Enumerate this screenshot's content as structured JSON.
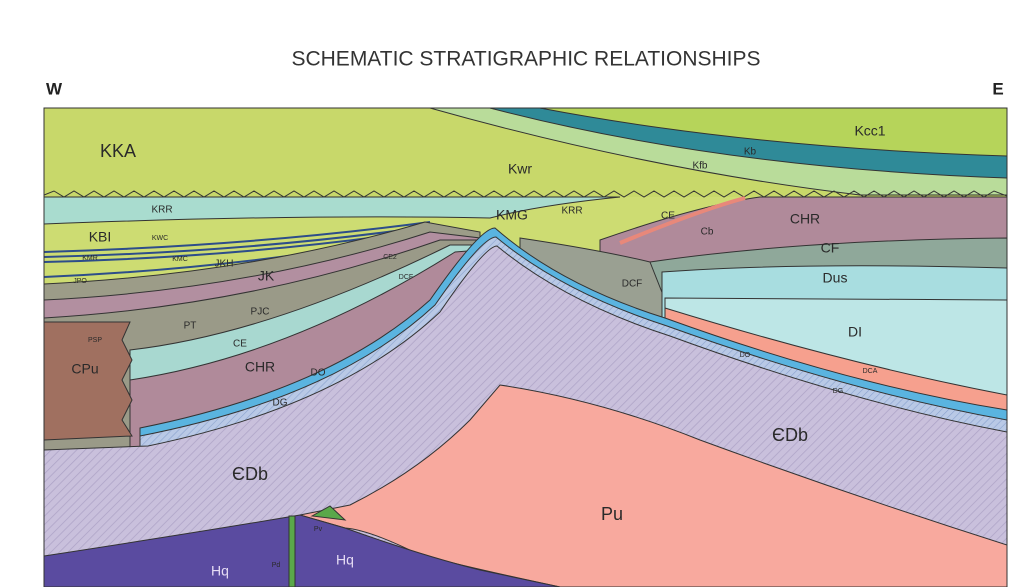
{
  "title": "SCHEMATIC STRATIGRAPHIC RELATIONSHIPS",
  "west": "W",
  "east": "E",
  "units": [
    "KKA",
    "Kwr",
    "Kcc1",
    "Kb",
    "Kfb",
    "KRR",
    "KMG",
    "KRR",
    "KBI",
    "KWC",
    "KMR",
    "KMC",
    "JKH",
    "JPO",
    "JK",
    "PJC",
    "PT",
    "PSP",
    "CPu",
    "CE",
    "CHR",
    "DO",
    "DG",
    "CE2",
    "DCF",
    "CE",
    "Cb",
    "CHR",
    "CF",
    "Dus",
    "DCF",
    "DI",
    "DO",
    "DCA",
    "DG",
    "ЄDb",
    "ЄDb",
    "Pu",
    "Pv",
    "Pd",
    "Hq",
    "Hq"
  ]
}
